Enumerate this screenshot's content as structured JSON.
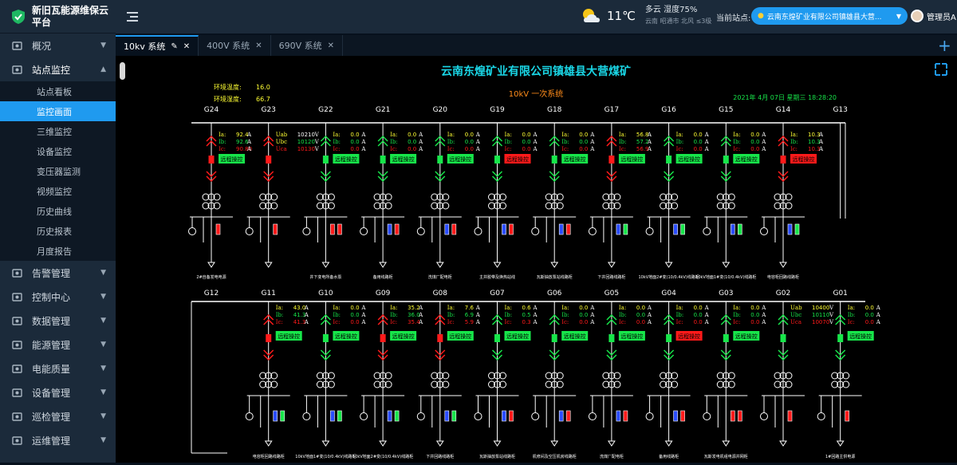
{
  "sidebar": {
    "title": "新旧瓦能源维保云平台",
    "items": [
      {
        "label": "概况",
        "icon": "image-icon",
        "open": false
      },
      {
        "label": "站点监控",
        "icon": "dashboard-icon",
        "open": true,
        "children": [
          "站点看板",
          "监控画面",
          "三维监控",
          "设备监控",
          "变压器监测",
          "视频监控",
          "历史曲线",
          "历史报表",
          "月度报告"
        ],
        "active_child": 1
      },
      {
        "label": "告警管理",
        "icon": "alarm-icon",
        "open": false
      },
      {
        "label": "控制中心",
        "icon": "control-icon",
        "open": false
      },
      {
        "label": "数据管理",
        "icon": "data-icon",
        "open": false
      },
      {
        "label": "能源管理",
        "icon": "energy-icon",
        "open": false
      },
      {
        "label": "电能质量",
        "icon": "power-quality-icon",
        "open": false
      },
      {
        "label": "设备管理",
        "icon": "device-icon",
        "open": false
      },
      {
        "label": "巡检管理",
        "icon": "inspection-icon",
        "open": false
      },
      {
        "label": "运维管理",
        "icon": "maintenance-icon",
        "open": false
      }
    ]
  },
  "header": {
    "weather": {
      "temp": "11℃",
      "condition": "多云 湿度75%",
      "location": "云南 昭通市 北风 ≤3级"
    },
    "station_label": "当前站点:",
    "station_value": "云南东煌矿业有限公司镇雄县大营...",
    "user": "管理员A"
  },
  "tabs": [
    {
      "label": "10kv 系统",
      "active": true
    },
    {
      "label": "400V 系统",
      "active": false
    },
    {
      "label": "690V 系统",
      "active": false
    }
  ],
  "diagram": {
    "title": "云南东煌矿业有限公司镇雄县大营煤矿",
    "subtitle": "10kV 一次系统",
    "env_temp_label": "环境温度:",
    "env_temp": "16.0",
    "env_humid_label": "环境湿度:",
    "env_humid": "66.7",
    "datetime": "2021年 4月 07日 星期三 18:28:20",
    "remote_label": "远程操控",
    "top": [
      {
        "id": "G24",
        "type": "feeder",
        "ia": "92.4",
        "ib": "92.6",
        "ic": "90.80",
        "br": "red",
        "sw": [
          "red"
        ],
        "name": "2#自备发电电源"
      },
      {
        "id": "G23",
        "type": "pt",
        "uab": "10210",
        "ubc": "10120",
        "uca": "10130",
        "br": "red",
        "sw": [
          "red"
        ],
        "name": ""
      },
      {
        "id": "G22",
        "type": "feeder",
        "ia": "0.0",
        "ib": "0.0",
        "ic": "0.0",
        "br": "green",
        "sw": [
          "red",
          "red"
        ],
        "name": "井下变电所备水泵"
      },
      {
        "id": "G21",
        "type": "feeder",
        "ia": "0.0",
        "ib": "0.0",
        "ic": "0.0",
        "br": "green",
        "sw": [
          "blue",
          "red"
        ],
        "name": "备用线路柜"
      },
      {
        "id": "G20",
        "type": "feeder",
        "ia": "0.0",
        "ib": "0.0",
        "ic": "0.0",
        "br": "green",
        "sw": [
          "blue",
          "red"
        ],
        "name": "洗煤厂配电柜"
      },
      {
        "id": "G19",
        "type": "feeder",
        "ia": "0.0",
        "ib": "0.0",
        "ic": "0.0",
        "br": "green",
        "rbtn": "red",
        "sw": [
          "blue",
          "red"
        ],
        "name": "主井胶带及换热站线"
      },
      {
        "id": "G18",
        "type": "feeder",
        "ia": "0.0",
        "ib": "0.0",
        "ic": "0.0",
        "br": "green",
        "sw": [
          "blue",
          "red"
        ],
        "name": "瓦斯抽放泵站线路柜"
      },
      {
        "id": "G17",
        "type": "feeder",
        "ia": "56.8",
        "ib": "57.2",
        "ic": "56.9",
        "br": "red",
        "sw": [
          "blue",
          "green"
        ],
        "name": "下井回路线路柜"
      },
      {
        "id": "G16",
        "type": "feeder",
        "ia": "0.0",
        "ib": "0.0",
        "ic": "0.0",
        "br": "green",
        "sw": [
          "blue",
          "green"
        ],
        "name": "10kV地面2#变(10/0.4kV)线路柜"
      },
      {
        "id": "G15",
        "type": "feeder",
        "ia": "0.0",
        "ib": "0.0",
        "ic": "0.0",
        "br": "green",
        "sw": [
          "blue",
          "green"
        ],
        "name": "10kV地面1#变(10/0.4kV)线路柜"
      },
      {
        "id": "G14",
        "type": "feeder",
        "ia": "10.3",
        "ib": "10.3",
        "ic": "10.3",
        "br": "red",
        "rbtn": "red",
        "sw": [
          "blue",
          "green"
        ],
        "name": "电容柜回路线路柜"
      },
      {
        "id": "G13",
        "type": "tie"
      }
    ],
    "bottom": [
      {
        "id": "G12",
        "type": "tie"
      },
      {
        "id": "G11",
        "type": "feeder",
        "ia": "43.0",
        "ib": "41.3",
        "ic": "41.3",
        "br": "red",
        "sw": [
          "blue",
          "green"
        ],
        "name": "电容柜回路线路柜"
      },
      {
        "id": "G10",
        "type": "feeder",
        "ia": "0.0",
        "ib": "0.0",
        "ic": "0.0",
        "br": "green",
        "sw": [
          "blue",
          "green"
        ],
        "name": "10kV地面1#变(10/0.4kV)线路柜"
      },
      {
        "id": "G09",
        "type": "feeder",
        "ia": "35.2",
        "ib": "36.0",
        "ic": "35.4",
        "br": "red",
        "sw": [
          "blue",
          "green"
        ],
        "name": "10kV地面2#变(10/0.4kV)线路柜"
      },
      {
        "id": "G08",
        "type": "feeder",
        "ia": "7.6",
        "ib": "6.9",
        "ic": "5.9",
        "br": "red",
        "sw": [
          "blue",
          "green"
        ],
        "name": "下井回路线路柜"
      },
      {
        "id": "G07",
        "type": "feeder",
        "ia": "0.6",
        "ib": "0.5",
        "ic": "0.3",
        "br": "green",
        "sw": [
          "blue",
          "red"
        ],
        "name": "瓦斯抽放泵站线路柜"
      },
      {
        "id": "G06",
        "type": "feeder",
        "ia": "0.0",
        "ib": "0.0",
        "ic": "0.0",
        "br": "green",
        "sw": [
          "blue",
          "red"
        ],
        "name": "机修间及空压机房线路柜"
      },
      {
        "id": "G05",
        "type": "feeder",
        "ia": "0.0",
        "ib": "0.0",
        "ic": "0.0",
        "br": "green",
        "sw": [
          "blue",
          "red"
        ],
        "name": "洗煤厂配电柜"
      },
      {
        "id": "G04",
        "type": "feeder",
        "ia": "0.0",
        "ib": "0.0",
        "ic": "0.0",
        "br": "green",
        "rbtn": "red",
        "sw": [
          "blue",
          "red"
        ],
        "name": "备用线路柜"
      },
      {
        "id": "G03",
        "type": "feeder",
        "ia": "0.0",
        "ib": "0.0",
        "ic": "0.0",
        "br": "green",
        "sw": [
          "red",
          "red"
        ],
        "name": "瓦斯发电机组电源并网柜"
      },
      {
        "id": "G02",
        "type": "pt",
        "uab": "10400",
        "ubc": "10110",
        "uca": "10070",
        "br": "green",
        "sw": [
          "red"
        ],
        "name": ""
      },
      {
        "id": "G01",
        "type": "feeder",
        "ia": "0.0",
        "ib": "0.0",
        "ic": "0.0",
        "br": "green",
        "sw": [
          "red"
        ],
        "name": "1#回路主供电源"
      }
    ]
  },
  "colors": {
    "red": "#ff1a1a",
    "green": "#17e64a",
    "blue": "#2a4cff",
    "label_yellow": "#ffff33",
    "cyan": "#1ad6e6",
    "orange": "#ff8c1a"
  }
}
